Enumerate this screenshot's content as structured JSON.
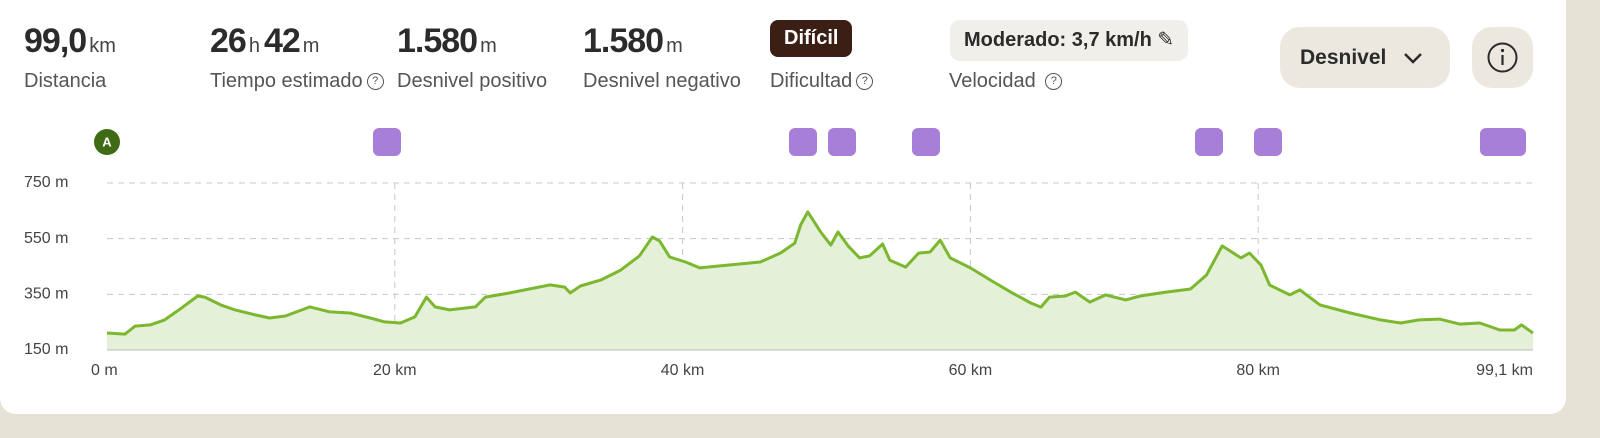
{
  "stats": {
    "distance": {
      "value": "99,0",
      "unit": "km",
      "label": "Distancia"
    },
    "time": {
      "hours": "26",
      "hours_unit": "h",
      "minutes": "42",
      "minutes_unit": "m",
      "label": "Tiempo estimado"
    },
    "ascent": {
      "value": "1.580",
      "unit": "m",
      "label": "Desnivel positivo"
    },
    "descent": {
      "value": "1.580",
      "unit": "m",
      "label": "Desnivel negativo"
    },
    "difficulty": {
      "value": "Difícil",
      "label": "Dificultad"
    },
    "speed": {
      "value": "Moderado: 3,7 km/h",
      "label": "Velocidad"
    }
  },
  "dropdown": "Desnivel",
  "start_marker": "A",
  "chart_data": {
    "type": "area",
    "x": [
      0,
      1.25,
      1.95,
      3,
      4,
      5,
      6.3,
      6.8,
      7.9,
      8.9,
      10.3,
      11.3,
      12.4,
      14.1,
      15.5,
      16.9,
      18.3,
      19.3,
      20.4,
      21.4,
      22.2,
      22.8,
      23.8,
      25.6,
      26.3,
      28,
      30.8,
      31.8,
      32.2,
      32.9,
      34.3,
      35.7,
      37,
      37.9,
      38.4,
      39.1,
      40.2,
      41.2,
      42.6,
      45.4,
      46.8,
      47.8,
      48.2,
      48.7,
      49.6,
      50.3,
      50.8,
      51.5,
      52.3,
      53,
      53.9,
      54.4,
      55.5,
      56.4,
      57.2,
      57.9,
      58.6,
      60,
      61.4,
      62.8,
      64.2,
      64.9,
      65.5,
      66.6,
      67.3,
      68.3,
      69.4,
      70.8,
      71.8,
      73.6,
      75.3,
      76.4,
      77.5,
      78.8,
      79.4,
      80.2,
      80.8,
      82.2,
      82.9,
      84.3,
      86.4,
      88.5,
      89.9,
      91.2,
      92.6,
      94,
      95.4,
      96.8,
      97.8,
      98.3,
      99.1
    ],
    "values": [
      211,
      207,
      236,
      240,
      258,
      294,
      344,
      340,
      312,
      294,
      276,
      265,
      272,
      305,
      287,
      283,
      265,
      251,
      247,
      269,
      340,
      305,
      294,
      305,
      340,
      355,
      384,
      376,
      355,
      380,
      401,
      437,
      488,
      556,
      542,
      484,
      466,
      445,
      452,
      466,
      498,
      534,
      599,
      646,
      574,
      527,
      574,
      524,
      481,
      488,
      531,
      473,
      448,
      498,
      502,
      545,
      481,
      445,
      401,
      358,
      319,
      304,
      340,
      344,
      358,
      322,
      348,
      330,
      344,
      358,
      369,
      419,
      524,
      481,
      498,
      455,
      383,
      348,
      366,
      312,
      283,
      258,
      247,
      258,
      261,
      243,
      247,
      222,
      222,
      240,
      211
    ],
    "color": "#7cb82f",
    "fill": "#e4f0d8",
    "xlim": [
      0,
      99.1
    ],
    "xticks": [
      {
        "value": 0,
        "label": "0 m"
      },
      {
        "value": 20,
        "label": "20 km"
      },
      {
        "value": 40,
        "label": "40 km"
      },
      {
        "value": 60,
        "label": "60 km"
      },
      {
        "value": 80,
        "label": "80 km"
      },
      {
        "value": 99.1,
        "label": "99,1 km"
      }
    ],
    "ylim": [
      150,
      750
    ],
    "yticks": [
      {
        "value": 150,
        "label": "150 m"
      },
      {
        "value": 350,
        "label": "350 m"
      },
      {
        "value": 550,
        "label": "550 m"
      },
      {
        "value": 750,
        "label": "750 m"
      }
    ],
    "grid": true
  }
}
